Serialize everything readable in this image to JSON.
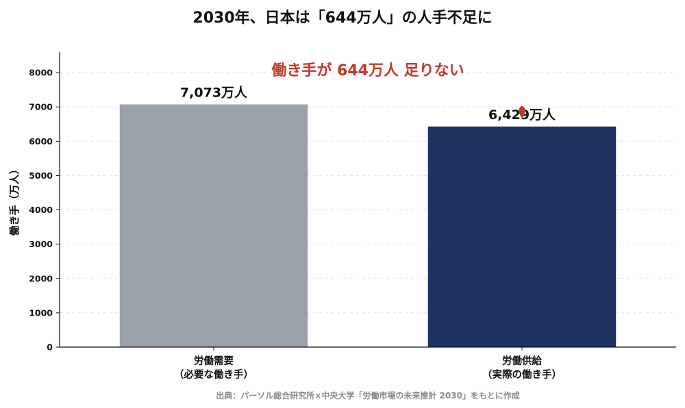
{
  "chart_data": {
    "type": "bar",
    "title": "2030年、日本は「644万人」の人手不足に",
    "ylabel": "働き手（万人）",
    "xlabel": "",
    "ylim": [
      0,
      8600
    ],
    "yticks": [
      0,
      1000,
      2000,
      3000,
      4000,
      5000,
      6000,
      7000,
      8000
    ],
    "grid": "horizontal-dashed",
    "categories": [
      [
        "労働需要",
        "（必要な働き手）"
      ],
      [
        "労働供給",
        "（実際の働き手）"
      ]
    ],
    "values": [
      7073,
      6429
    ],
    "value_labels": [
      "7,073万人",
      "6,429万人"
    ],
    "colors": [
      "#9aa1ab",
      "#1f3363"
    ],
    "annotation": "働き手が 644万人 足りない",
    "annotation_color": "#c0392b",
    "source": "出典：パーソル総合研究所×中央大学「労働市場の未来推計 2030」をもとに作成"
  }
}
